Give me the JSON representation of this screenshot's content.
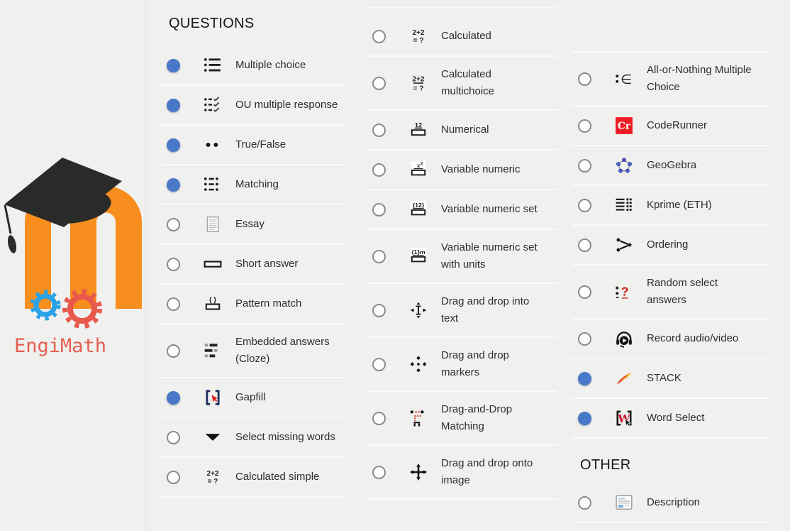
{
  "background": "#f0f0ee",
  "accent_selected_radio": "#4a78c8",
  "divider_color": "#fafaf8",
  "logo_panel": {
    "moodle_logo": "moodle-m-with-graduation-cap",
    "moodle_orange": "#f78e1e",
    "engimath_label": "EngiMath",
    "engimath_text_color": "#e45f51",
    "engimath_gear_blue": "#2aa3e6",
    "engimath_gear_red": "#e8594c"
  },
  "columns": [
    {
      "groups": [
        {
          "header": "QUESTIONS",
          "items": [
            {
              "label": "Multiple choice",
              "icon": "multiple-choice-list",
              "selected": true
            },
            {
              "label": "OU multiple response",
              "icon": "checklist",
              "selected": true
            },
            {
              "label": "True/False",
              "icon": "true-false-dots",
              "selected": true
            },
            {
              "label": "Matching",
              "icon": "matching-list",
              "selected": true
            },
            {
              "label": "Essay",
              "icon": "essay-document",
              "selected": false
            },
            {
              "label": "Short answer",
              "icon": "short-answer-box",
              "selected": false
            },
            {
              "label": "Pattern match",
              "icon": "pattern-match",
              "selected": false
            },
            {
              "label": "Embedded answers (Cloze)",
              "icon": "cloze-blocks",
              "selected": false
            },
            {
              "label": "Gapfill",
              "icon": "gapfill-brackets",
              "selected": true
            },
            {
              "label": "Select missing words",
              "icon": "dropdown-triangle",
              "selected": false
            },
            {
              "label": "Calculated simple",
              "icon": "calculated-simple",
              "selected": false
            }
          ]
        }
      ]
    },
    {
      "groups": [
        {
          "header": null,
          "items": [
            {
              "label": "Calculated",
              "icon": "calculated",
              "selected": false
            },
            {
              "label": "Calculated multichoice",
              "icon": "calculated-multichoice",
              "selected": false
            },
            {
              "label": "Numerical",
              "icon": "numerical",
              "selected": false
            },
            {
              "label": "Variable numeric",
              "icon": "variable-numeric",
              "selected": false
            },
            {
              "label": "Variable numeric set",
              "icon": "variable-numeric-set",
              "selected": false
            },
            {
              "label": "Variable numeric set with units",
              "icon": "variable-numeric-set-units",
              "selected": false
            },
            {
              "label": "Drag and drop into text",
              "icon": "drag-drop-text",
              "selected": false
            },
            {
              "label": "Drag and drop markers",
              "icon": "drag-drop-markers",
              "selected": false
            },
            {
              "label": "Drag-and-Drop Matching",
              "icon": "drag-drop-matching",
              "selected": false
            },
            {
              "label": "Drag and drop onto image",
              "icon": "drag-drop-image",
              "selected": false
            }
          ]
        }
      ]
    },
    {
      "groups": [
        {
          "header": null,
          "items": [
            {
              "label": "All-or-Nothing Multiple Choice",
              "icon": "all-or-nothing",
              "selected": false
            },
            {
              "label": "CodeRunner",
              "icon": "coderunner",
              "selected": false
            },
            {
              "label": "GeoGebra",
              "icon": "geogebra",
              "selected": false
            },
            {
              "label": "Kprime (ETH)",
              "icon": "kprime",
              "selected": false
            },
            {
              "label": "Ordering",
              "icon": "ordering",
              "selected": false
            },
            {
              "label": "Random select answers",
              "icon": "random-select",
              "selected": false
            },
            {
              "label": "Record audio/video",
              "icon": "record-av",
              "selected": false
            },
            {
              "label": "STACK",
              "icon": "stack",
              "selected": true
            },
            {
              "label": "Word Select",
              "icon": "word-select",
              "selected": true
            }
          ]
        },
        {
          "header": "OTHER",
          "items": [
            {
              "label": "Description",
              "icon": "description",
              "selected": false
            }
          ]
        }
      ]
    }
  ]
}
